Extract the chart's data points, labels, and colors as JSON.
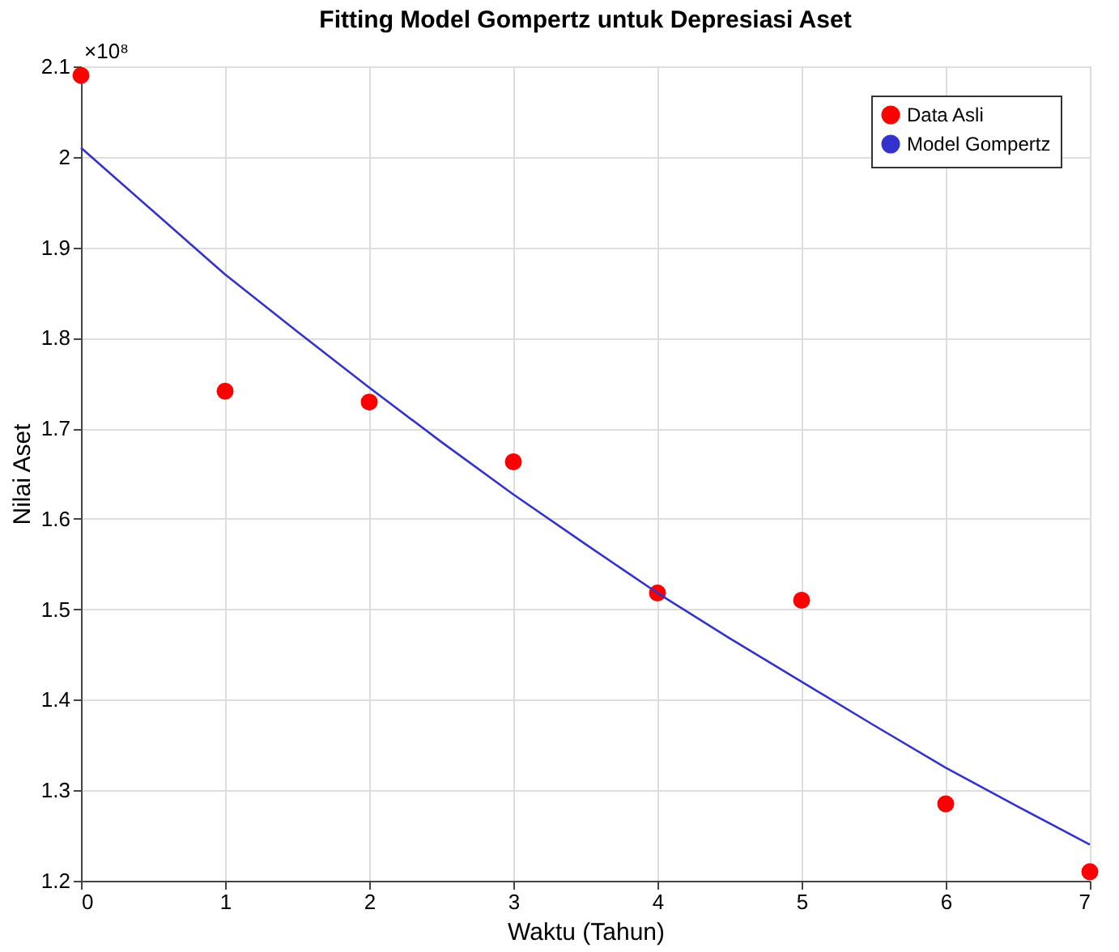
{
  "chart_data": {
    "type": "scatter",
    "title": "Fitting Model Gompertz untuk Depresiasi Aset",
    "xlabel": "Waktu (Tahun)",
    "ylabel": "Nilai Aset",
    "annotations": [
      "×10⁸"
    ],
    "xlim": [
      0,
      7
    ],
    "xticks": [
      0,
      1,
      2,
      3,
      4,
      5,
      6,
      7
    ],
    "ylim": [
      1.2,
      2.1
    ],
    "yticks": [
      1.2,
      1.3,
      1.4,
      1.5,
      1.6,
      1.7,
      1.8,
      1.9,
      2,
      2.1
    ],
    "grid": true,
    "legend": "top right",
    "series": [
      {
        "name": "Data Asli",
        "marker": "circle",
        "color": "#ff0000",
        "x": [
          0,
          1,
          2,
          3,
          4,
          5,
          6,
          7
        ],
        "values": [
          2.09,
          1.741,
          1.729,
          1.663,
          1.518,
          1.51,
          1.285,
          1.21
        ]
      },
      {
        "name": "Model Gompertz",
        "type": "line",
        "marker": "none",
        "line_style": "solid",
        "color": "#3333cc",
        "x": [
          0,
          0.5,
          1,
          1.5,
          2,
          2.5,
          3,
          3.5,
          4,
          4.5,
          5,
          5.5,
          6,
          6.5,
          7
        ],
        "values": [
          2.01,
          1.94,
          1.87,
          1.807,
          1.745,
          1.685,
          1.627,
          1.572,
          1.518,
          1.468,
          1.42,
          1.372,
          1.325,
          1.282,
          1.24
        ]
      }
    ]
  }
}
